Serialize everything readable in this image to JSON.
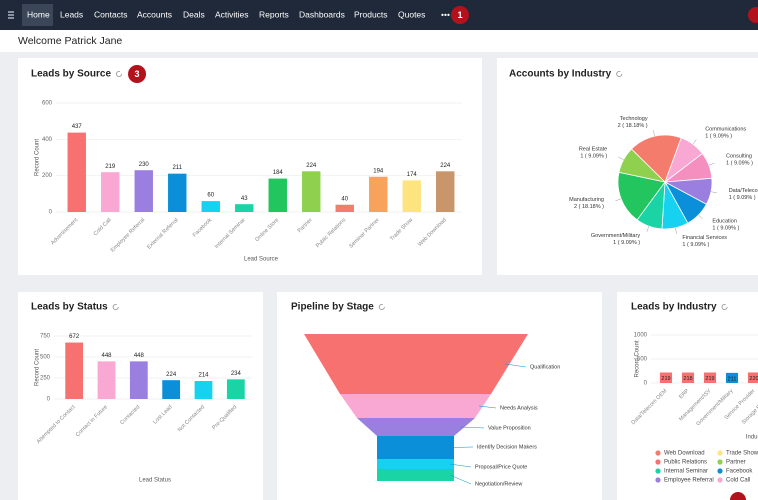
{
  "nav": {
    "items": [
      "Home",
      "Leads",
      "Contacts",
      "Accounts",
      "Deals",
      "Activities",
      "Reports",
      "Dashboards",
      "Products",
      "Quotes",
      "•••"
    ]
  },
  "badges": [
    "1",
    "3"
  ],
  "header": {
    "welcome": "Welcome Patrick Jane"
  },
  "chart_data": [
    {
      "type": "bar",
      "title": "Leads by Source",
      "y_label": "Record Count",
      "x_label": "Lead Source",
      "categories": [
        "Advertisement",
        "Cold Call",
        "Employee Referral",
        "External Referral",
        "Facebook",
        "Internal Seminar",
        "Online Store",
        "Partner",
        "Public Relations",
        "Seminar Partner",
        "Trade Show",
        "Web Download"
      ],
      "values": [
        437,
        219,
        230,
        211,
        60,
        43,
        184,
        224,
        40,
        194,
        174,
        224
      ],
      "colors": [
        "#f87171",
        "#f9a8d4",
        "#9b7fe0",
        "#0b8fd9",
        "#16d2f0",
        "#1ad4a6",
        "#22c55e",
        "#8fd14f",
        "#f47c6c",
        "#f7a35c",
        "#fde47f",
        "#c9956b"
      ],
      "ylim": [
        0,
        600
      ],
      "yticks": [
        0,
        200,
        400,
        600
      ]
    },
    {
      "type": "pie",
      "title": "Accounts by Industry",
      "categories": [
        "Communications",
        "Consulting",
        "Data/Telecom OEM",
        "Education",
        "Financial Services",
        "Government/Military",
        "Manufacturing",
        "Real Estate",
        "Technology"
      ],
      "values": [
        1,
        1,
        1,
        1,
        1,
        1,
        2,
        1,
        2
      ],
      "value_labels": [
        "1 ( 9.09% )",
        "1 ( 9.09% )",
        "1 ( 9.09% )",
        "1 ( 9.09% )",
        "1 ( 9.09% )",
        "1 ( 9.09% )",
        "2 ( 18.18% )",
        "1 ( 9.09% )",
        "2 ( 18.18% )"
      ],
      "colors": [
        "#f9a8d4",
        "#f58fc0",
        "#9b7fe0",
        "#0b8fd9",
        "#16d2f0",
        "#1ad4a6",
        "#22c55e",
        "#8fd14f",
        "#f47c6c"
      ]
    },
    {
      "type": "bar",
      "title": "Leads by Status",
      "y_label": "Record Count",
      "x_label": "Lead Status",
      "categories": [
        "Attempted to Contact",
        "Contact in Future",
        "Contacted",
        "Lost Lead",
        "Not Contacted",
        "Pre-Qualified"
      ],
      "values": [
        672,
        448,
        448,
        224,
        214,
        234
      ],
      "colors": [
        "#f87171",
        "#f9a8d4",
        "#9b7fe0",
        "#0b8fd9",
        "#16d2f0",
        "#1ad4a6"
      ],
      "ylim": [
        0,
        750
      ],
      "yticks": [
        0,
        250,
        500,
        750
      ]
    },
    {
      "type": "funnel",
      "title": "Pipeline by Stage",
      "categories": [
        "Qualification",
        "Needs Analysis",
        "Value Proposition",
        "Identify Decision Makers",
        "Proposal/Price Quote",
        "Negotiation/Review"
      ],
      "colors": [
        "#f87171",
        "#f9a8d4",
        "#9b7fe0",
        "#0b8fd9",
        "#16d2f0",
        "#1ad4a6"
      ]
    },
    {
      "type": "bar",
      "title": "Leads by Industry",
      "y_label": "Record Count",
      "x_label": "Industry",
      "categories": [
        "Data/Telecom OEM",
        "ERP",
        "Management/ISV",
        "Government/Military",
        "Service Provider",
        "Storage Equipment"
      ],
      "values": [
        219,
        218,
        219,
        211,
        220,
        220
      ],
      "colors": [
        "#f87171",
        "#f87171",
        "#f87171",
        "#0b8fd9",
        "#f87171",
        "#f87171"
      ],
      "ylim": [
        0,
        1000
      ],
      "yticks": [
        0,
        500,
        1000
      ],
      "legend": [
        {
          "name": "Web Download",
          "color": "#f47c6c"
        },
        {
          "name": "Trade Show",
          "color": "#fde47f"
        },
        {
          "name": "Public Relations",
          "color": "#f87171"
        },
        {
          "name": "Partner",
          "color": "#8fd14f"
        },
        {
          "name": "Internal Seminar",
          "color": "#1ad4a6"
        },
        {
          "name": "Facebook",
          "color": "#0b8fd9"
        },
        {
          "name": "Employee Referral",
          "color": "#9b7fe0"
        },
        {
          "name": "Cold Call",
          "color": "#f9a8d4"
        }
      ]
    }
  ]
}
